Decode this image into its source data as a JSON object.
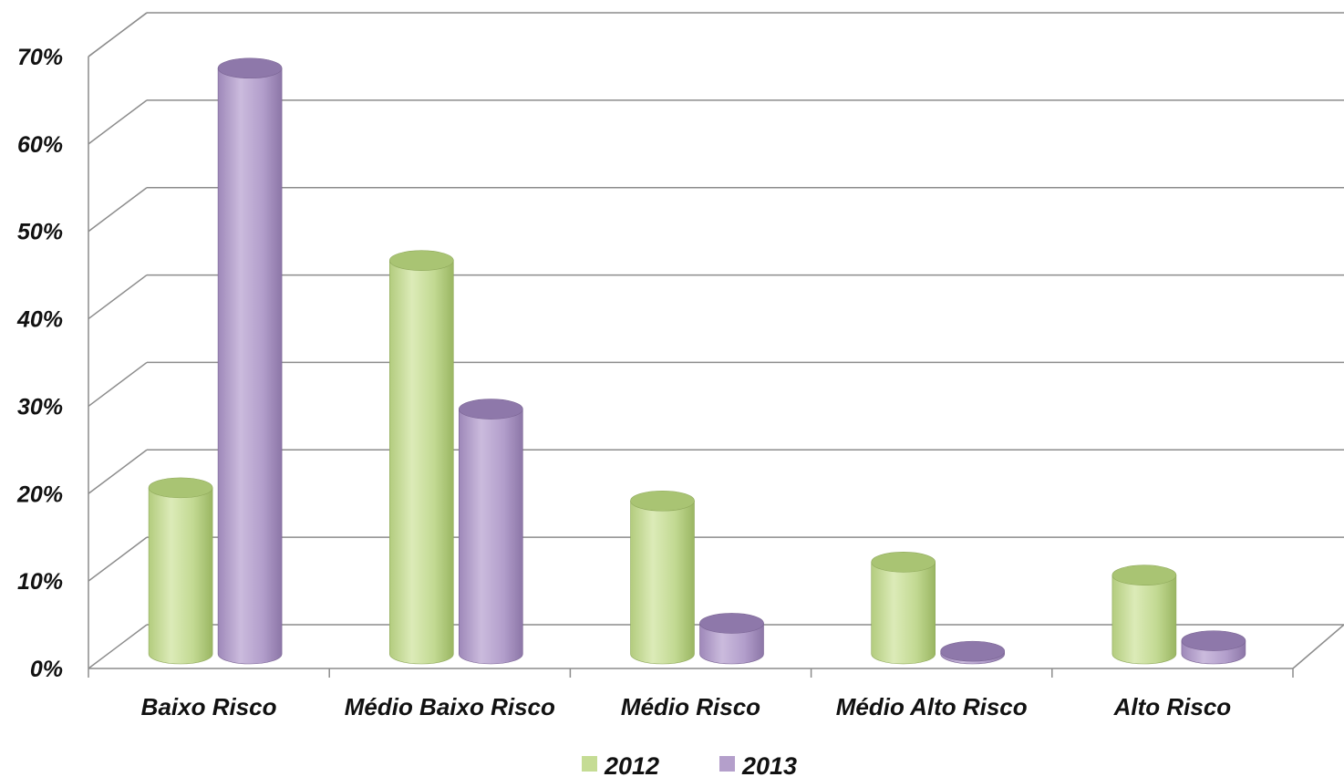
{
  "chart_data": {
    "type": "bar",
    "categories": [
      "Baixo Risco",
      "Médio Baixo Risco",
      "Médio Risco",
      "Médio Alto Risco",
      "Alto Risco"
    ],
    "series": [
      {
        "name": "2012",
        "values": [
          19,
          45,
          17.5,
          10.5,
          9
        ],
        "color": "#c5dc94"
      },
      {
        "name": "2013",
        "values": [
          67,
          28,
          3.5,
          0.3,
          1.5
        ],
        "color": "#b49fcb"
      }
    ],
    "yticks": [
      "0%",
      "10%",
      "20%",
      "30%",
      "40%",
      "50%",
      "60%",
      "70%"
    ],
    "ylim": [
      0,
      70
    ],
    "grid": true,
    "legend_position": "bottom",
    "style": "3d-cylinder"
  }
}
